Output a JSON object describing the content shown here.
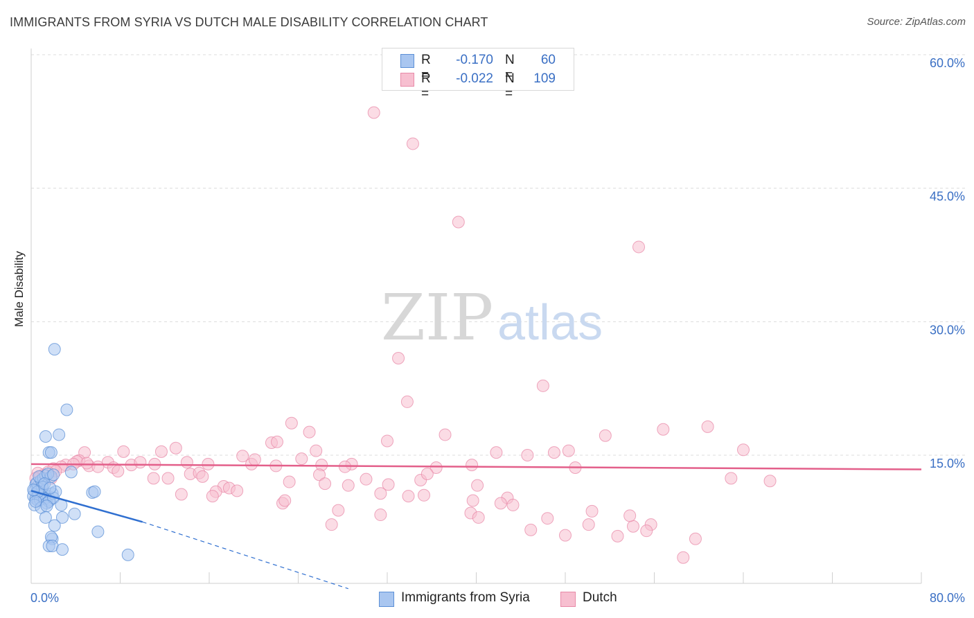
{
  "header": {
    "title": "IMMIGRANTS FROM SYRIA VS DUTCH MALE DISABILITY CORRELATION CHART",
    "source": "Source: ZipAtlas.com"
  },
  "watermark": {
    "zip": "ZIP",
    "atlas": "atlas"
  },
  "stats": [
    {
      "r_label": "R =",
      "r_value": "-0.170",
      "n_label": "N =",
      "n_value": "60",
      "color": "#a9c6f0",
      "border": "#5b8fd6"
    },
    {
      "r_label": "R =",
      "r_value": "-0.022",
      "n_label": "N =",
      "n_value": "109",
      "color": "#f7bfd0",
      "border": "#e88aa8"
    }
  ],
  "legend": [
    {
      "label": "Immigrants from Syria",
      "color": "#a9c6f0",
      "border": "#5b8fd6"
    },
    {
      "label": "Dutch",
      "color": "#f7bfd0",
      "border": "#e88aa8"
    }
  ],
  "chart_data": {
    "type": "scatter",
    "title": "IMMIGRANTS FROM SYRIA VS DUTCH MALE DISABILITY CORRELATION CHART",
    "xlabel": "",
    "ylabel": "Male Disability",
    "xlim": [
      0,
      80
    ],
    "ylim": [
      0,
      62
    ],
    "x_tick_labels": [
      {
        "value": 0,
        "label": "0.0%"
      },
      {
        "value": 80,
        "label": "80.0%"
      }
    ],
    "y_tick_labels": [
      {
        "value": 15,
        "label": "15.0%"
      },
      {
        "value": 30,
        "label": "30.0%"
      },
      {
        "value": 45,
        "label": "45.0%"
      },
      {
        "value": 60,
        "label": "60.0%"
      }
    ],
    "series": [
      {
        "name": "Immigrants from Syria",
        "color": "#a9c6f0",
        "stroke": "#5b8fd6",
        "trend": {
          "x0": 0,
          "y0": 11.0,
          "x1": 10.0,
          "y1": 7.5,
          "dash_to_x": 28.5,
          "dash_to_y": 0,
          "color": "#2f6fd0"
        },
        "points": [
          [
            2.1,
            26.9
          ],
          [
            3.2,
            20.1
          ],
          [
            1.3,
            17.1
          ],
          [
            2.5,
            17.3
          ],
          [
            1.6,
            15.3
          ],
          [
            1.8,
            15.3
          ],
          [
            3.6,
            13.1
          ],
          [
            0.4,
            11.7
          ],
          [
            0.6,
            11.5
          ],
          [
            0.8,
            11.2
          ],
          [
            1.0,
            11.6
          ],
          [
            0.3,
            11.0
          ],
          [
            0.5,
            10.8
          ],
          [
            0.7,
            10.5
          ],
          [
            0.9,
            10.3
          ],
          [
            1.1,
            10.6
          ],
          [
            1.3,
            10.2
          ],
          [
            1.5,
            10.4
          ],
          [
            1.7,
            10.0
          ],
          [
            1.9,
            10.7
          ],
          [
            0.2,
            10.4
          ],
          [
            0.4,
            10.1
          ],
          [
            0.6,
            9.9
          ],
          [
            0.8,
            10.0
          ],
          [
            1.2,
            10.1
          ],
          [
            1.4,
            9.6
          ],
          [
            1.6,
            9.8
          ],
          [
            2.0,
            10.2
          ],
          [
            0.5,
            11.9
          ],
          [
            0.9,
            12.2
          ],
          [
            1.1,
            12.4
          ],
          [
            1.3,
            12.7
          ],
          [
            0.7,
            12.6
          ],
          [
            1.8,
            12.6
          ],
          [
            1.5,
            12.9
          ],
          [
            2.0,
            12.8
          ],
          [
            1.0,
            11.4
          ],
          [
            0.3,
            9.4
          ],
          [
            0.9,
            9.1
          ],
          [
            1.4,
            9.3
          ],
          [
            2.7,
            9.4
          ],
          [
            1.3,
            8.0
          ],
          [
            2.8,
            8.0
          ],
          [
            3.9,
            8.4
          ],
          [
            5.5,
            10.8
          ],
          [
            5.7,
            10.9
          ],
          [
            2.1,
            7.1
          ],
          [
            1.9,
            5.6
          ],
          [
            1.8,
            5.8
          ],
          [
            1.6,
            4.8
          ],
          [
            1.9,
            4.8
          ],
          [
            2.8,
            4.4
          ],
          [
            6.0,
            6.4
          ],
          [
            8.7,
            3.8
          ],
          [
            0.6,
            10.9
          ],
          [
            1.2,
            11.8
          ],
          [
            0.2,
            11.1
          ],
          [
            2.2,
            10.9
          ],
          [
            1.7,
            11.3
          ],
          [
            0.4,
            9.8
          ]
        ]
      },
      {
        "name": "Dutch",
        "color": "#f7bfd0",
        "stroke": "#e88aa8",
        "trend": {
          "x0": 0,
          "y0": 14.0,
          "x1": 80,
          "y1": 13.4,
          "color": "#e35f8a"
        },
        "points": [
          [
            30.8,
            53.5
          ],
          [
            34.3,
            50.0
          ],
          [
            38.4,
            41.2
          ],
          [
            54.6,
            38.4
          ],
          [
            33.0,
            25.9
          ],
          [
            46.0,
            22.8
          ],
          [
            33.8,
            21.0
          ],
          [
            23.4,
            18.6
          ],
          [
            60.8,
            18.2
          ],
          [
            56.8,
            17.9
          ],
          [
            25.0,
            17.6
          ],
          [
            37.2,
            17.3
          ],
          [
            51.6,
            17.2
          ],
          [
            32.0,
            16.6
          ],
          [
            21.6,
            16.4
          ],
          [
            22.1,
            16.5
          ],
          [
            13.0,
            15.8
          ],
          [
            25.6,
            15.5
          ],
          [
            64.0,
            15.6
          ],
          [
            48.3,
            15.5
          ],
          [
            47.0,
            15.3
          ],
          [
            41.8,
            15.3
          ],
          [
            44.6,
            15.0
          ],
          [
            19.0,
            14.9
          ],
          [
            11.7,
            15.4
          ],
          [
            8.3,
            15.4
          ],
          [
            4.8,
            15.3
          ],
          [
            24.3,
            14.6
          ],
          [
            4.3,
            14.4
          ],
          [
            6.9,
            14.2
          ],
          [
            4.1,
            14.3
          ],
          [
            5.2,
            13.8
          ],
          [
            6.0,
            13.7
          ],
          [
            7.4,
            13.6
          ],
          [
            9.0,
            13.9
          ],
          [
            9.8,
            14.2
          ],
          [
            11.1,
            14.0
          ],
          [
            14.0,
            14.2
          ],
          [
            15.9,
            14.0
          ],
          [
            19.8,
            14.0
          ],
          [
            26.1,
            13.9
          ],
          [
            28.8,
            14.0
          ],
          [
            36.4,
            13.6
          ],
          [
            39.6,
            13.9
          ],
          [
            48.9,
            13.6
          ],
          [
            3.1,
            13.9
          ],
          [
            3.8,
            14.0
          ],
          [
            5.0,
            14.1
          ],
          [
            2.7,
            13.7
          ],
          [
            2.0,
            13.5
          ],
          [
            2.2,
            13.2
          ],
          [
            1.5,
            13.1
          ],
          [
            1.1,
            12.8
          ],
          [
            0.6,
            13.0
          ],
          [
            0.8,
            12.6
          ],
          [
            0.4,
            12.4
          ],
          [
            1.8,
            12.4
          ],
          [
            12.3,
            12.4
          ],
          [
            14.3,
            12.9
          ],
          [
            15.1,
            13.0
          ],
          [
            15.4,
            12.6
          ],
          [
            11.0,
            12.4
          ],
          [
            22.0,
            13.8
          ],
          [
            25.9,
            12.8
          ],
          [
            30.1,
            12.3
          ],
          [
            23.2,
            12.0
          ],
          [
            35.0,
            12.2
          ],
          [
            35.6,
            12.9
          ],
          [
            40.1,
            11.6
          ],
          [
            28.5,
            11.6
          ],
          [
            32.1,
            11.7
          ],
          [
            17.3,
            11.5
          ],
          [
            17.8,
            11.3
          ],
          [
            18.5,
            11.0
          ],
          [
            16.6,
            10.9
          ],
          [
            16.3,
            10.4
          ],
          [
            13.5,
            10.6
          ],
          [
            31.4,
            10.7
          ],
          [
            33.9,
            10.4
          ],
          [
            35.3,
            10.5
          ],
          [
            39.7,
            9.9
          ],
          [
            42.8,
            10.2
          ],
          [
            42.2,
            9.6
          ],
          [
            43.3,
            9.4
          ],
          [
            22.6,
            9.6
          ],
          [
            22.8,
            9.9
          ],
          [
            26.4,
            11.8
          ],
          [
            66.4,
            12.1
          ],
          [
            62.9,
            12.4
          ],
          [
            27.6,
            8.8
          ],
          [
            39.5,
            8.5
          ],
          [
            50.4,
            8.7
          ],
          [
            31.4,
            8.3
          ],
          [
            27.0,
            7.2
          ],
          [
            46.4,
            7.9
          ],
          [
            50.1,
            7.2
          ],
          [
            54.1,
            7.0
          ],
          [
            55.7,
            7.2
          ],
          [
            44.9,
            6.6
          ],
          [
            55.3,
            6.5
          ],
          [
            48.0,
            6.0
          ],
          [
            52.7,
            5.9
          ],
          [
            59.7,
            5.6
          ],
          [
            58.6,
            3.5
          ],
          [
            40.2,
            8.0
          ],
          [
            53.8,
            8.2
          ],
          [
            28.2,
            13.7
          ],
          [
            7.8,
            13.2
          ],
          [
            20.1,
            14.5
          ]
        ]
      }
    ]
  }
}
